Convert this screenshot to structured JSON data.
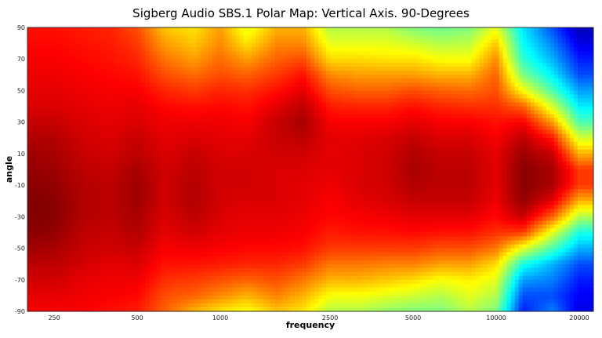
{
  "chart_data": {
    "type": "heatmap",
    "title": "Sigberg Audio SBS.1 Polar Map: Vertical Axis. 90-Degrees",
    "xlabel": "frequency",
    "ylabel": "angle",
    "x_scale": "log",
    "xlim": [
      200,
      22500
    ],
    "ylim": [
      -90,
      90
    ],
    "colormap": "jet",
    "grid": false,
    "x_ticks": [
      250,
      500,
      1000,
      2500,
      5000,
      10000,
      20000
    ],
    "x_tick_labels": [
      "250",
      "500",
      "1000",
      "2500",
      "5000",
      "10000",
      "20000"
    ],
    "y_ticks": [
      90,
      70,
      50,
      30,
      10,
      -10,
      -30,
      -50,
      -70,
      -90
    ],
    "y_tick_labels": [
      "90",
      "70",
      "50",
      "30",
      "10",
      "-10",
      "-30",
      "-50",
      "-70",
      "-90"
    ],
    "frequencies": [
      200,
      250,
      315,
      400,
      500,
      630,
      800,
      1000,
      1250,
      1600,
      2000,
      2500,
      3150,
      4000,
      5000,
      6300,
      8000,
      10000,
      12500,
      16000,
      20000
    ],
    "angles": [
      90,
      80,
      70,
      60,
      50,
      40,
      30,
      20,
      10,
      0,
      -10,
      -20,
      -30,
      -40,
      -50,
      -60,
      -70,
      -80,
      -90
    ],
    "values_by_frequency": [
      [
        0.86,
        0.87,
        0.88,
        0.89,
        0.9,
        0.91,
        0.93,
        0.95,
        0.97,
        0.98,
        0.99,
        1,
        1,
        0.99,
        0.97,
        0.94,
        0.92,
        0.9,
        0.88
      ],
      [
        0.86,
        0.87,
        0.88,
        0.89,
        0.9,
        0.91,
        0.93,
        0.95,
        0.96,
        0.97,
        0.98,
        0.99,
        0.99,
        0.98,
        0.96,
        0.94,
        0.92,
        0.9,
        0.88
      ],
      [
        0.85,
        0.86,
        0.87,
        0.88,
        0.89,
        0.9,
        0.91,
        0.92,
        0.93,
        0.94,
        0.95,
        0.95,
        0.95,
        0.94,
        0.93,
        0.92,
        0.9,
        0.89,
        0.88
      ],
      [
        0.84,
        0.85,
        0.86,
        0.87,
        0.88,
        0.89,
        0.9,
        0.91,
        0.92,
        0.93,
        0.94,
        0.94,
        0.94,
        0.93,
        0.92,
        0.9,
        0.89,
        0.88,
        0.86
      ],
      [
        0.8,
        0.82,
        0.84,
        0.86,
        0.88,
        0.9,
        0.91,
        0.93,
        0.94,
        0.96,
        0.97,
        0.97,
        0.96,
        0.95,
        0.93,
        0.91,
        0.89,
        0.87,
        0.85
      ],
      [
        0.68,
        0.72,
        0.76,
        0.8,
        0.84,
        0.87,
        0.89,
        0.9,
        0.91,
        0.92,
        0.92,
        0.92,
        0.91,
        0.9,
        0.88,
        0.86,
        0.83,
        0.8,
        0.78
      ],
      [
        0.65,
        0.68,
        0.72,
        0.77,
        0.82,
        0.86,
        0.89,
        0.91,
        0.93,
        0.94,
        0.95,
        0.95,
        0.94,
        0.92,
        0.89,
        0.86,
        0.82,
        0.78,
        0.7
      ],
      [
        0.72,
        0.74,
        0.77,
        0.8,
        0.84,
        0.87,
        0.89,
        0.9,
        0.91,
        0.92,
        0.92,
        0.92,
        0.91,
        0.9,
        0.88,
        0.85,
        0.8,
        0.74,
        0.65
      ],
      [
        0.6,
        0.65,
        0.72,
        0.78,
        0.83,
        0.86,
        0.88,
        0.9,
        0.91,
        0.92,
        0.92,
        0.91,
        0.9,
        0.89,
        0.87,
        0.84,
        0.78,
        0.7,
        0.62
      ],
      [
        0.7,
        0.74,
        0.78,
        0.82,
        0.86,
        0.9,
        0.93,
        0.93,
        0.92,
        0.91,
        0.91,
        0.91,
        0.9,
        0.89,
        0.87,
        0.84,
        0.8,
        0.75,
        0.68
      ],
      [
        0.7,
        0.74,
        0.8,
        0.86,
        0.9,
        0.94,
        0.96,
        0.94,
        0.92,
        0.91,
        0.9,
        0.9,
        0.89,
        0.88,
        0.86,
        0.82,
        0.76,
        0.7,
        0.65
      ],
      [
        0.55,
        0.6,
        0.66,
        0.74,
        0.8,
        0.85,
        0.88,
        0.9,
        0.9,
        0.9,
        0.89,
        0.88,
        0.87,
        0.85,
        0.82,
        0.76,
        0.7,
        0.62,
        0.55
      ],
      [
        0.55,
        0.6,
        0.66,
        0.72,
        0.78,
        0.84,
        0.88,
        0.9,
        0.91,
        0.91,
        0.91,
        0.9,
        0.88,
        0.86,
        0.82,
        0.76,
        0.7,
        0.62,
        0.55
      ],
      [
        0.55,
        0.6,
        0.65,
        0.72,
        0.78,
        0.84,
        0.88,
        0.91,
        0.92,
        0.92,
        0.92,
        0.91,
        0.89,
        0.86,
        0.82,
        0.75,
        0.68,
        0.6,
        0.52
      ],
      [
        0.5,
        0.58,
        0.65,
        0.72,
        0.8,
        0.86,
        0.9,
        0.93,
        0.95,
        0.96,
        0.95,
        0.93,
        0.9,
        0.87,
        0.82,
        0.75,
        0.66,
        0.58,
        0.5
      ],
      [
        0.48,
        0.55,
        0.62,
        0.7,
        0.78,
        0.84,
        0.88,
        0.91,
        0.93,
        0.94,
        0.94,
        0.93,
        0.9,
        0.86,
        0.8,
        0.72,
        0.62,
        0.55,
        0.5
      ],
      [
        0.5,
        0.56,
        0.62,
        0.7,
        0.77,
        0.83,
        0.88,
        0.91,
        0.93,
        0.94,
        0.94,
        0.93,
        0.9,
        0.86,
        0.8,
        0.72,
        0.64,
        0.6,
        0.55
      ],
      [
        0.6,
        0.68,
        0.74,
        0.78,
        0.8,
        0.83,
        0.86,
        0.88,
        0.9,
        0.9,
        0.9,
        0.89,
        0.87,
        0.83,
        0.76,
        0.66,
        0.6,
        0.55,
        0.5
      ],
      [
        0.35,
        0.38,
        0.42,
        0.5,
        0.62,
        0.78,
        0.88,
        0.94,
        0.97,
        0.99,
        0.99,
        0.98,
        0.93,
        0.82,
        0.6,
        0.4,
        0.28,
        0.2,
        0.15
      ],
      [
        0.2,
        0.25,
        0.3,
        0.36,
        0.45,
        0.58,
        0.72,
        0.85,
        0.93,
        0.96,
        0.96,
        0.9,
        0.78,
        0.6,
        0.45,
        0.3,
        0.25,
        0.2,
        0.25
      ],
      [
        0.05,
        0.1,
        0.15,
        0.2,
        0.28,
        0.36,
        0.45,
        0.58,
        0.7,
        0.82,
        0.82,
        0.7,
        0.55,
        0.4,
        0.3,
        0.2,
        0.15,
        0.12,
        0.1
      ]
    ]
  }
}
